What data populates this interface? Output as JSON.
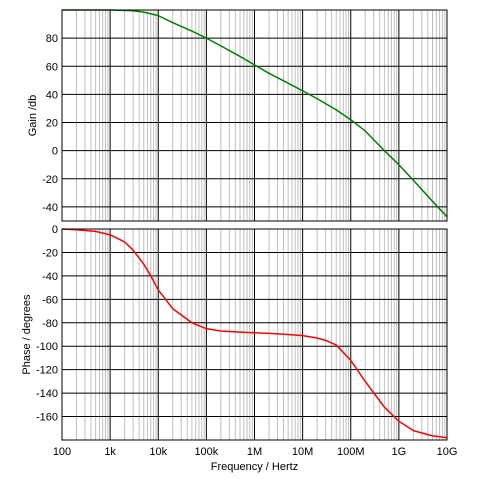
{
  "chart_data": [
    {
      "type": "line",
      "ylabel": "Gain /db",
      "xscale": "log",
      "xlim": [
        100,
        10000000000
      ],
      "ylim": [
        -50,
        100
      ],
      "y_ticks": [
        "80",
        "60",
        "40",
        "20",
        "0",
        "-20",
        "-40"
      ],
      "y_tick_values": [
        80,
        60,
        40,
        20,
        0,
        -20,
        -40
      ],
      "grid": true,
      "series": [
        {
          "color": "#008000",
          "points": [
            [
              100,
              100
            ],
            [
              300,
              100
            ],
            [
              1000,
              100
            ],
            [
              3000,
              99.5
            ],
            [
              5000,
              98.5
            ],
            [
              10000,
              96
            ],
            [
              20000,
              91
            ],
            [
              50000,
              85
            ],
            [
              100000,
              80
            ],
            [
              200000,
              74.5
            ],
            [
              500000,
              67
            ],
            [
              1000000,
              61
            ],
            [
              2000000,
              55
            ],
            [
              5000000,
              48
            ],
            [
              10000000,
              42.5
            ],
            [
              20000000,
              37
            ],
            [
              50000000,
              29
            ],
            [
              100000000,
              22
            ],
            [
              200000000,
              14
            ],
            [
              500000000,
              0
            ],
            [
              1000000000,
              -10
            ],
            [
              2000000000,
              -21
            ],
            [
              5000000000,
              -36
            ],
            [
              10000000000,
              -47
            ]
          ]
        }
      ]
    },
    {
      "type": "line",
      "xlabel": "Frequency / Hertz",
      "ylabel": "Phase / degrees",
      "xscale": "log",
      "xlim": [
        100,
        10000000000
      ],
      "ylim": [
        -180,
        0
      ],
      "x_ticks": [
        "100",
        "1k",
        "10k",
        "100k",
        "1M",
        "10M",
        "100M",
        "1G",
        "10G"
      ],
      "x_tick_values": [
        100,
        1000,
        10000,
        100000,
        1000000,
        10000000,
        100000000,
        1000000000,
        10000000000
      ],
      "y_ticks": [
        "0",
        "-20",
        "-40",
        "-60",
        "-80",
        "-100",
        "-120",
        "-140",
        "-160"
      ],
      "y_tick_values": [
        0,
        -20,
        -40,
        -60,
        -80,
        -100,
        -120,
        -140,
        -160
      ],
      "grid": true,
      "series": [
        {
          "color": "#ff0000",
          "points": [
            [
              100,
              0
            ],
            [
              200,
              -0.6
            ],
            [
              500,
              -2
            ],
            [
              1000,
              -5
            ],
            [
              2000,
              -11
            ],
            [
              3000,
              -18
            ],
            [
              5000,
              -30
            ],
            [
              7000,
              -40
            ],
            [
              10000,
              -52
            ],
            [
              20000,
              -68
            ],
            [
              50000,
              -80
            ],
            [
              100000,
              -85
            ],
            [
              200000,
              -87
            ],
            [
              500000,
              -88
            ],
            [
              1000000,
              -88.5
            ],
            [
              2000000,
              -89
            ],
            [
              5000000,
              -90
            ],
            [
              10000000,
              -91
            ],
            [
              20000000,
              -93
            ],
            [
              30000000,
              -95
            ],
            [
              50000000,
              -99
            ],
            [
              100000000,
              -112
            ],
            [
              200000000,
              -130
            ],
            [
              500000000,
              -152
            ],
            [
              1000000000,
              -164
            ],
            [
              2000000000,
              -172
            ],
            [
              5000000000,
              -176.5
            ],
            [
              10000000000,
              -178
            ]
          ]
        }
      ]
    }
  ]
}
